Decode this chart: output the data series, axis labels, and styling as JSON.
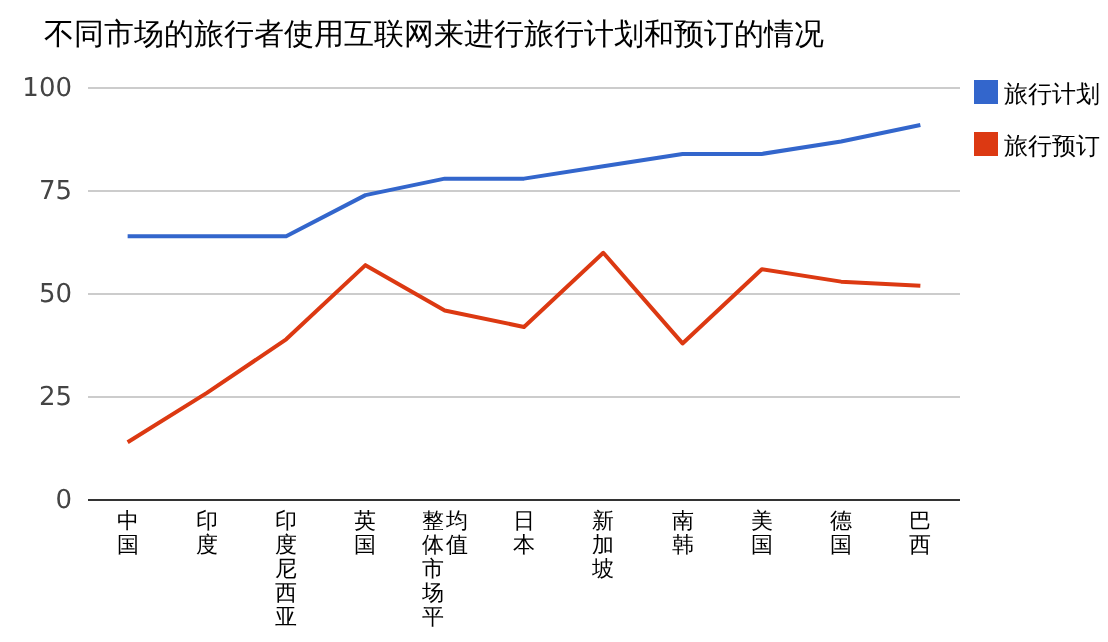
{
  "chart_data": {
    "type": "line",
    "title": "不同市场的旅行者使用互联网来进行旅行计划和预订的情况",
    "categories": [
      "中国",
      "印度",
      "印度尼西亚",
      "英国",
      "整体市场平均值",
      "日本",
      "新加坡",
      "南韩",
      "美国",
      "德国",
      "巴西"
    ],
    "series": [
      {
        "name": "旅行计划",
        "color": "#3366cc",
        "values": [
          64,
          64,
          64,
          74,
          78,
          78,
          81,
          84,
          84,
          87,
          91
        ]
      },
      {
        "name": "旅行预订",
        "color": "#dc3912",
        "values": [
          14,
          26,
          39,
          57,
          46,
          42,
          60,
          38,
          56,
          53,
          52
        ]
      }
    ],
    "ylim": [
      0,
      100
    ],
    "yticks": [
      0,
      25,
      50,
      75,
      100
    ],
    "grid": "y",
    "legend": "right",
    "marker": "none",
    "line_style": "solid"
  }
}
